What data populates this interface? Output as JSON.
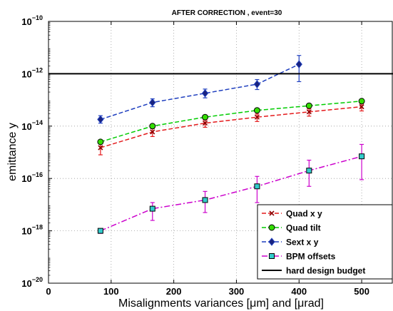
{
  "chart_data": {
    "type": "line",
    "title": "AFTER CORRECTION , event=30",
    "xlabel": "Misalignments variances [μm] and [μrad]",
    "ylabel": "emittance y",
    "xlim": [
      0,
      550
    ],
    "ylim": [
      1e-20,
      1e-10
    ],
    "yscale": "log",
    "grid": true,
    "legend_position": "bottom-right",
    "x_ticks": [
      {
        "value": 0,
        "label": "0"
      },
      {
        "value": 100,
        "label": "100"
      },
      {
        "value": 200,
        "label": "200"
      },
      {
        "value": 300,
        "label": "300"
      },
      {
        "value": 400,
        "label": "400"
      },
      {
        "value": 500,
        "label": "500"
      }
    ],
    "y_ticks": [
      {
        "value": 1e-20,
        "base": "10",
        "exp": "−20"
      },
      {
        "value": 1e-18,
        "base": "10",
        "exp": "−18"
      },
      {
        "value": 1e-16,
        "base": "10",
        "exp": "−16"
      },
      {
        "value": 1e-14,
        "base": "10",
        "exp": "−14"
      },
      {
        "value": 1e-12,
        "base": "10",
        "exp": "−12"
      },
      {
        "value": 1e-10,
        "base": "10",
        "exp": "−10"
      }
    ],
    "series": [
      {
        "name": "Quad x y",
        "color": "#e41a1c",
        "marker": "x",
        "marker_face": "#8b0000",
        "x": [
          83,
          166,
          250,
          333,
          416,
          500
        ],
        "y": [
          1.5e-15,
          6e-15,
          1.3e-14,
          2.2e-14,
          3.5e-14,
          5.5e-14
        ],
        "err_low": [
          8e-16,
          4e-15,
          9e-15,
          1.5e-14,
          2.4e-14,
          3.8e-14
        ],
        "err_high": [
          2.2e-15,
          8e-15,
          1.7e-14,
          2.9e-14,
          4.6e-14,
          7e-14
        ]
      },
      {
        "name": "Quad tilt",
        "color": "#00cc00",
        "marker": "circle",
        "marker_face": "#33dd00",
        "x": [
          83,
          166,
          250,
          333,
          416,
          500
        ],
        "y": [
          2.5e-15,
          1e-14,
          2.2e-14,
          4e-14,
          6e-14,
          9e-14
        ],
        "err_low": null,
        "err_high": null
      },
      {
        "name": "Sext x y",
        "color": "#1f3fbf",
        "marker": "diamond",
        "marker_face": "#1a237e",
        "x": [
          83,
          166,
          250,
          333,
          400
        ],
        "y": [
          1.8e-14,
          8e-14,
          1.8e-13,
          4e-13,
          2.3e-12
        ],
        "err_low": [
          1.3e-14,
          5.5e-14,
          1.2e-13,
          2.5e-13,
          5e-13
        ],
        "err_high": [
          2.5e-14,
          1.1e-13,
          2.6e-13,
          6e-13,
          5e-12
        ]
      },
      {
        "name": "BPM offsets",
        "color": "#cc00cc",
        "marker": "square",
        "marker_face": "#33cccc",
        "x": [
          83,
          166,
          250,
          333,
          416,
          500
        ],
        "y": [
          1e-18,
          7e-18,
          1.5e-17,
          5e-17,
          2e-16,
          7e-16
        ],
        "err_low": [
          8e-19,
          2.5e-18,
          5e-18,
          1.2e-17,
          5e-17,
          9e-17
        ],
        "err_high": [
          1.2e-18,
          1.2e-17,
          3.2e-17,
          1.2e-16,
          5e-16,
          2e-15
        ]
      }
    ],
    "reference_line": {
      "name": "hard design budget",
      "value": 1e-12,
      "color": "#000000"
    }
  }
}
